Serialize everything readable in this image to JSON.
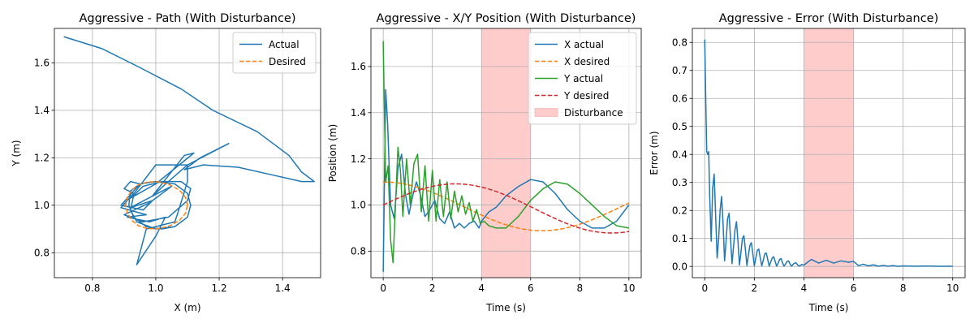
{
  "chart_data": [
    {
      "type": "line",
      "title": "Aggressive - Path (With Disturbance)",
      "xlabel": "X (m)",
      "ylabel": "Y (m)",
      "xlim": [
        0.68,
        1.52
      ],
      "ylim": [
        0.695,
        1.745
      ],
      "xticks": [
        0.8,
        1.0,
        1.2,
        1.4
      ],
      "xtick_labels": [
        "0.8",
        "1.0",
        "1.2",
        "1.4"
      ],
      "yticks": [
        0.8,
        1.0,
        1.2,
        1.4,
        1.6
      ],
      "ytick_labels": [
        "0.8",
        "1.0",
        "1.2",
        "1.4",
        "1.6"
      ],
      "grid": true,
      "legend": "top-right",
      "series": [
        {
          "name": "Actual",
          "color": "#1f77b4",
          "style": "solid",
          "x": [
            0.71,
            0.83,
            0.95,
            1.08,
            1.18,
            1.32,
            1.42,
            1.46,
            1.5,
            1.46,
            1.36,
            1.26,
            1.15,
            1.09,
            1.14,
            1.23,
            1.1,
            1.04,
            0.99,
            1.09,
            1.12,
            1.0,
            0.92,
            1.0,
            1.1,
            1.1,
            1.07,
            1.06,
            0.97,
            0.94,
            1.0,
            1.03,
            0.98,
            0.91,
            0.97,
            0.89,
            0.93,
            0.9,
            0.92,
            0.95,
            0.89,
            0.96,
            0.99,
            0.92,
            1.02,
            1.05,
            0.98,
            0.9,
            0.96,
            1.04,
            1.1,
            1.11,
            1.08,
            1.02,
            0.96,
            0.93,
            0.92,
            0.94,
            1.0,
            1.06,
            1.1,
            1.11,
            1.1,
            1.06,
            1.0,
            0.95,
            0.92,
            0.915,
            0.93,
            0.97,
            1.02,
            1.06,
            1.09
          ],
          "y": [
            1.71,
            1.66,
            1.58,
            1.49,
            1.4,
            1.31,
            1.21,
            1.14,
            1.1,
            1.1,
            1.13,
            1.16,
            1.17,
            1.15,
            1.2,
            1.26,
            1.17,
            1.1,
            1.04,
            1.21,
            1.22,
            1.09,
            1.03,
            1.17,
            1.17,
            1.1,
            0.97,
            0.93,
            0.9,
            0.75,
            0.87,
            0.95,
            0.93,
            0.95,
            0.96,
            0.99,
            1.05,
            1.07,
            1.1,
            1.09,
            1.0,
            0.98,
            1.02,
            0.99,
            1.06,
            1.08,
            1.01,
            0.96,
            0.93,
            0.95,
            1.02,
            1.07,
            1.1,
            1.1,
            1.08,
            1.04,
            0.98,
            0.93,
            0.9,
            0.91,
            0.95,
            1.0,
            1.05,
            1.09,
            1.1,
            1.09,
            1.06,
            1.0,
            0.95,
            0.91,
            0.9,
            0.91,
            0.94
          ]
        },
        {
          "name": "Desired",
          "color": "#ff7f0e",
          "style": "dashed",
          "x": [
            1.1,
            1.0935,
            1.0743,
            1.0438,
            1.0097,
            0.9757,
            0.9457,
            0.925,
            0.9107,
            0.9048,
            0.9107,
            0.925,
            0.9457,
            0.9757,
            1.0097,
            1.0438,
            1.0743,
            1.0935,
            1.1
          ],
          "y": [
            1.0,
            1.0342,
            1.0643,
            1.0866,
            1.0985,
            1.0985,
            1.0866,
            1.0643,
            1.0342,
            1.0,
            0.9658,
            0.9357,
            0.9134,
            0.9015,
            0.9015,
            0.9134,
            0.9357,
            0.9658,
            1.0
          ]
        }
      ]
    },
    {
      "type": "line",
      "title": "Aggressive - X/Y Position (With Disturbance)",
      "xlabel": "Time (s)",
      "ylabel": "Position (m)",
      "xlim": [
        -0.5,
        10.5
      ],
      "ylim": [
        0.685,
        1.765
      ],
      "xticks": [
        0,
        2,
        4,
        6,
        8,
        10
      ],
      "xtick_labels": [
        "0",
        "2",
        "4",
        "6",
        "8",
        "10"
      ],
      "yticks": [
        0.8,
        1.0,
        1.2,
        1.4,
        1.6
      ],
      "ytick_labels": [
        "0.8",
        "1.0",
        "1.2",
        "1.4",
        "1.6"
      ],
      "grid": true,
      "legend": "top-right",
      "shaded_region": {
        "name": "Disturbance",
        "x": [
          4,
          6
        ],
        "color": "#ffcccc"
      },
      "series": [
        {
          "name": "X actual",
          "color": "#1f77b4",
          "style": "solid",
          "t": [
            0.0,
            0.05,
            0.1,
            0.18,
            0.3,
            0.45,
            0.6,
            0.75,
            0.9,
            1.05,
            1.2,
            1.35,
            1.5,
            1.7,
            1.9,
            2.1,
            2.3,
            2.5,
            2.7,
            2.9,
            3.1,
            3.3,
            3.5,
            3.7,
            3.9,
            4.0,
            4.3,
            4.6,
            5.0,
            5.5,
            6.0,
            6.5,
            7.0,
            7.5,
            8.0,
            8.5,
            9.0,
            9.5,
            10.0
          ],
          "x": [
            0.71,
            1.1,
            1.5,
            1.35,
            1.0,
            0.94,
            1.16,
            1.22,
            1.05,
            0.96,
            1.04,
            1.1,
            1.05,
            0.95,
            0.98,
            1.02,
            0.94,
            0.92,
            0.97,
            0.9,
            0.92,
            0.9,
            0.92,
            0.93,
            0.9,
            0.93,
            0.97,
            0.99,
            1.04,
            1.08,
            1.11,
            1.1,
            1.05,
            0.98,
            0.93,
            0.9,
            0.9,
            0.93,
            1.0
          ]
        },
        {
          "name": "X desired",
          "color": "#ff7f0e",
          "style": "dashed",
          "t": [
            0,
            0.25,
            0.5,
            0.75,
            1,
            1.25,
            1.5,
            1.75,
            2,
            2.25,
            2.5,
            2.75,
            3,
            3.25,
            3.5,
            3.75,
            4,
            4.25,
            4.5,
            4.75,
            5,
            5.25,
            5.5,
            5.75,
            6,
            6.25,
            6.5,
            6.75,
            7,
            7.25,
            7.5,
            7.75,
            8,
            8.25,
            8.5,
            8.75,
            9,
            9.25,
            9.5,
            9.75,
            10
          ],
          "x": [
            1.1,
            1.0992,
            1.0969,
            1.0931,
            1.0878,
            1.0813,
            1.0735,
            1.0645,
            1.0545,
            1.0436,
            1.032,
            1.0197,
            1.007,
            0.9941,
            0.9812,
            0.9684,
            0.956,
            0.9442,
            0.9332,
            0.9231,
            0.914,
            0.9062,
            0.8997,
            0.8946,
            0.891,
            0.8889,
            0.8884,
            0.8894,
            0.892,
            0.8961,
            0.9016,
            0.9084,
            0.9165,
            0.9257,
            0.9358,
            0.9468,
            0.9585,
            0.9707,
            0.9832,
            0.9959,
            1.0087
          ]
        },
        {
          "name": "Y actual",
          "color": "#2ca02c",
          "style": "solid",
          "t": [
            0.0,
            0.05,
            0.1,
            0.2,
            0.3,
            0.4,
            0.5,
            0.6,
            0.7,
            0.8,
            0.95,
            1.1,
            1.25,
            1.4,
            1.55,
            1.7,
            1.85,
            2.0,
            2.15,
            2.3,
            2.45,
            2.6,
            2.75,
            2.9,
            3.05,
            3.2,
            3.35,
            3.5,
            3.65,
            3.8,
            3.95,
            4.1,
            4.3,
            4.6,
            5.0,
            5.5,
            6.0,
            6.5,
            7.0,
            7.5,
            8.0,
            8.5,
            9.0,
            9.5,
            10.0
          ],
          "y": [
            1.71,
            1.4,
            1.1,
            1.17,
            0.85,
            0.75,
            1.0,
            1.25,
            1.15,
            0.95,
            1.2,
            1.0,
            1.18,
            1.22,
            0.97,
            1.17,
            0.93,
            1.15,
            0.93,
            1.11,
            0.95,
            1.1,
            0.94,
            1.06,
            0.97,
            1.04,
            0.96,
            1.01,
            0.93,
            0.98,
            0.92,
            0.93,
            0.91,
            0.9,
            0.9,
            0.95,
            1.02,
            1.07,
            1.1,
            1.09,
            1.05,
            1.0,
            0.95,
            0.91,
            0.9
          ]
        },
        {
          "name": "Y desired",
          "color": "#d62728",
          "style": "dashed",
          "t": [
            0,
            0.25,
            0.5,
            0.75,
            1,
            1.25,
            1.5,
            1.75,
            2,
            2.25,
            2.5,
            2.75,
            3,
            3.25,
            3.5,
            3.75,
            4,
            4.25,
            4.5,
            4.75,
            5,
            5.25,
            5.5,
            5.75,
            6,
            6.25,
            6.5,
            6.75,
            7,
            7.25,
            7.5,
            7.75,
            8,
            8.25,
            8.5,
            8.75,
            9,
            9.25,
            9.5,
            9.75,
            10
          ],
          "y": [
            1.0,
            1.0125,
            1.0247,
            1.0363,
            1.0473,
            1.0573,
            1.0663,
            1.0741,
            1.0806,
            1.0856,
            1.0891,
            1.0911,
            1.0915,
            1.0903,
            1.0876,
            1.0833,
            1.0776,
            1.0705,
            1.0621,
            1.0525,
            1.0419,
            1.0305,
            1.0183,
            1.0056,
            0.9926,
            0.9794,
            0.9662,
            0.9534,
            0.941,
            0.9292,
            0.9183,
            0.9085,
            0.8998,
            0.8925,
            0.8866,
            0.8823,
            0.8796,
            0.8785,
            0.8791,
            0.8813,
            0.8851
          ]
        }
      ]
    },
    {
      "type": "line",
      "title": "Aggressive - Error (With Disturbance)",
      "xlabel": "Time (s)",
      "ylabel": "Error (m)",
      "xlim": [
        -0.5,
        10.5
      ],
      "ylim": [
        -0.04,
        0.85
      ],
      "xticks": [
        0,
        2,
        4,
        6,
        8,
        10
      ],
      "xtick_labels": [
        "0",
        "2",
        "4",
        "6",
        "8",
        "10"
      ],
      "yticks": [
        0.0,
        0.1,
        0.2,
        0.3,
        0.4,
        0.5,
        0.6,
        0.7,
        0.8
      ],
      "ytick_labels": [
        "0.0",
        "0.1",
        "0.2",
        "0.3",
        "0.4",
        "0.5",
        "0.6",
        "0.7",
        "0.8"
      ],
      "grid": true,
      "shaded_region": {
        "x": [
          4,
          6
        ],
        "color": "#ffcccc"
      },
      "series": [
        {
          "color": "#1f77b4",
          "style": "solid",
          "t": [
            0.0,
            0.04,
            0.08,
            0.12,
            0.16,
            0.2,
            0.26,
            0.32,
            0.38,
            0.44,
            0.5,
            0.56,
            0.62,
            0.68,
            0.74,
            0.8,
            0.86,
            0.92,
            0.98,
            1.04,
            1.1,
            1.16,
            1.22,
            1.28,
            1.34,
            1.4,
            1.46,
            1.52,
            1.58,
            1.64,
            1.7,
            1.76,
            1.82,
            1.88,
            1.94,
            2.0,
            2.06,
            2.12,
            2.18,
            2.24,
            2.3,
            2.36,
            2.42,
            2.48,
            2.54,
            2.6,
            2.66,
            2.72,
            2.78,
            2.84,
            2.9,
            2.96,
            3.02,
            3.08,
            3.14,
            3.2,
            3.26,
            3.32,
            3.38,
            3.44,
            3.5,
            3.56,
            3.62,
            3.68,
            3.74,
            3.8,
            3.86,
            3.92,
            4.0,
            4.3,
            4.6,
            4.9,
            5.2,
            5.5,
            5.8,
            6.0,
            6.2,
            6.4,
            6.6,
            6.8,
            7.0,
            7.2,
            7.4,
            7.6,
            7.8,
            8.0,
            8.5,
            9.0,
            9.5,
            10.0
          ],
          "y": [
            0.81,
            0.6,
            0.41,
            0.4,
            0.41,
            0.25,
            0.09,
            0.28,
            0.33,
            0.18,
            0.03,
            0.1,
            0.2,
            0.25,
            0.15,
            0.02,
            0.09,
            0.17,
            0.19,
            0.1,
            0.01,
            0.07,
            0.13,
            0.16,
            0.09,
            0.005,
            0.05,
            0.1,
            0.11,
            0.06,
            0.003,
            0.04,
            0.075,
            0.085,
            0.045,
            0.002,
            0.03,
            0.058,
            0.062,
            0.03,
            0.002,
            0.022,
            0.045,
            0.048,
            0.025,
            0.001,
            0.016,
            0.03,
            0.035,
            0.018,
            0.001,
            0.012,
            0.025,
            0.028,
            0.012,
            0.001,
            0.009,
            0.018,
            0.02,
            0.009,
            0.001,
            0.007,
            0.012,
            0.013,
            0.006,
            0.001,
            0.004,
            0.007,
            0.005,
            0.025,
            0.012,
            0.022,
            0.012,
            0.02,
            0.015,
            0.018,
            0.003,
            0.008,
            0.002,
            0.006,
            0.001,
            0.004,
            0.001,
            0.003,
            0.0005,
            0.002,
            0.001,
            0.0015,
            0.0005,
            0.001
          ]
        }
      ]
    }
  ]
}
